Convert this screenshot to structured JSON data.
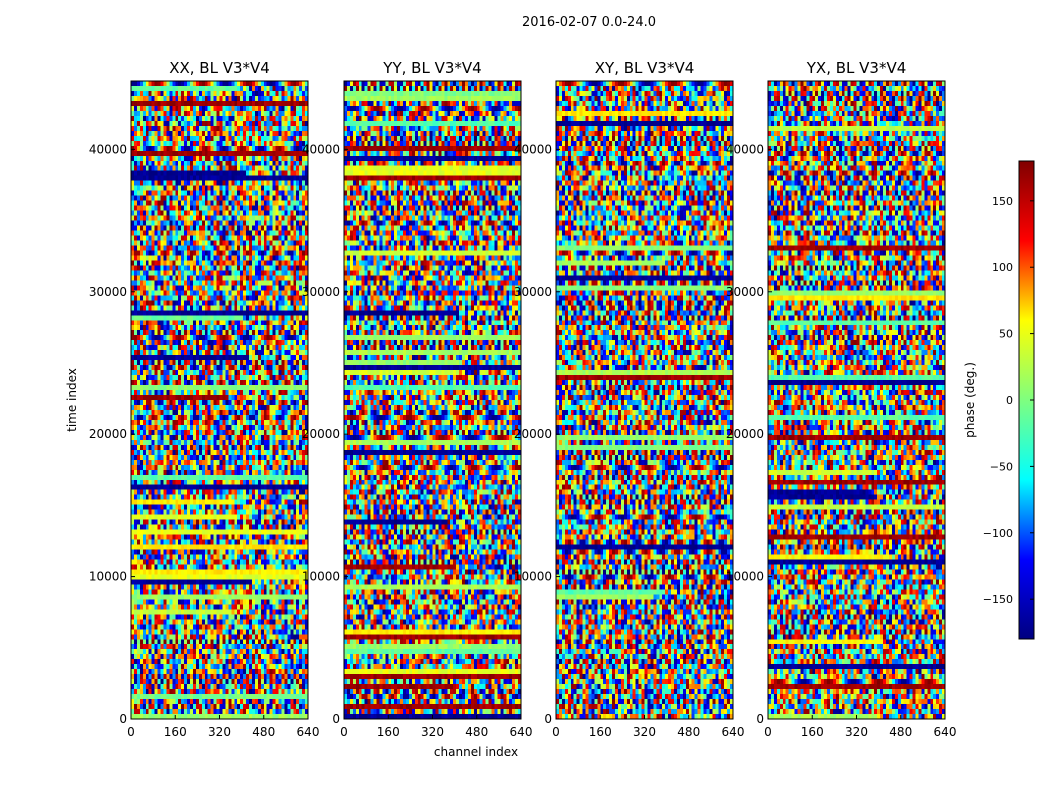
{
  "figure": {
    "suptitle": "2016-02-07 0.0-24.0",
    "xlabel": "channel index",
    "ylabel": "time index"
  },
  "colorbar": {
    "label": "phase (deg.)",
    "range": [
      -180,
      180
    ],
    "ticks": [
      "150",
      "100",
      "50",
      "0",
      "−50",
      "−100",
      "−150"
    ],
    "tick_values": [
      150,
      100,
      50,
      0,
      -50,
      -100,
      -150
    ],
    "colormap": "jet",
    "colors": [
      "#000080",
      "#0000ff",
      "#00ffff",
      "#7fff7f",
      "#ffff00",
      "#ff0000",
      "#800000"
    ]
  },
  "chart_data": [
    {
      "type": "heatmap",
      "title": "XX, BL V3*V4",
      "xlabel": "",
      "ylabel": "time index",
      "xlim": [
        0,
        640
      ],
      "ylim": [
        0,
        44800
      ],
      "xticks": [
        "0",
        "160",
        "320",
        "480",
        "640"
      ],
      "xtick_values": [
        0,
        160,
        320,
        480,
        640
      ],
      "yticks": [
        "0",
        "10000",
        "20000",
        "30000",
        "40000"
      ],
      "ytick_values": [
        0,
        10000,
        20000,
        30000,
        40000
      ],
      "value_range_deg": [
        -180,
        180
      ],
      "seed": 11
    },
    {
      "type": "heatmap",
      "title": "YY, BL V3*V4",
      "xlabel": "channel index",
      "ylabel": "",
      "xlim": [
        0,
        640
      ],
      "ylim": [
        0,
        44800
      ],
      "xticks": [
        "0",
        "160",
        "320",
        "480",
        "640"
      ],
      "xtick_values": [
        0,
        160,
        320,
        480,
        640
      ],
      "yticks": [
        "0",
        "10000",
        "20000",
        "30000",
        "40000"
      ],
      "ytick_values": [
        0,
        10000,
        20000,
        30000,
        40000
      ],
      "value_range_deg": [
        -180,
        180
      ],
      "seed": 23
    },
    {
      "type": "heatmap",
      "title": "XY, BL V3*V4",
      "xlabel": "",
      "ylabel": "",
      "xlim": [
        0,
        640
      ],
      "ylim": [
        0,
        44800
      ],
      "xticks": [
        "0",
        "160",
        "320",
        "480",
        "640"
      ],
      "xtick_values": [
        0,
        160,
        320,
        480,
        640
      ],
      "yticks": [
        "0",
        "10000",
        "20000",
        "30000",
        "40000"
      ],
      "ytick_values": [
        0,
        10000,
        20000,
        30000,
        40000
      ],
      "value_range_deg": [
        -180,
        180
      ],
      "seed": 37
    },
    {
      "type": "heatmap",
      "title": "YX, BL V3*V4",
      "xlabel": "",
      "ylabel": "",
      "xlim": [
        0,
        640
      ],
      "ylim": [
        0,
        44800
      ],
      "xticks": [
        "0",
        "160",
        "320",
        "480",
        "640"
      ],
      "xtick_values": [
        0,
        160,
        320,
        480,
        640
      ],
      "yticks": [
        "0",
        "10000",
        "20000",
        "30000",
        "40000"
      ],
      "ytick_values": [
        0,
        10000,
        20000,
        30000,
        40000
      ],
      "value_range_deg": [
        -180,
        180
      ],
      "seed": 51
    }
  ]
}
